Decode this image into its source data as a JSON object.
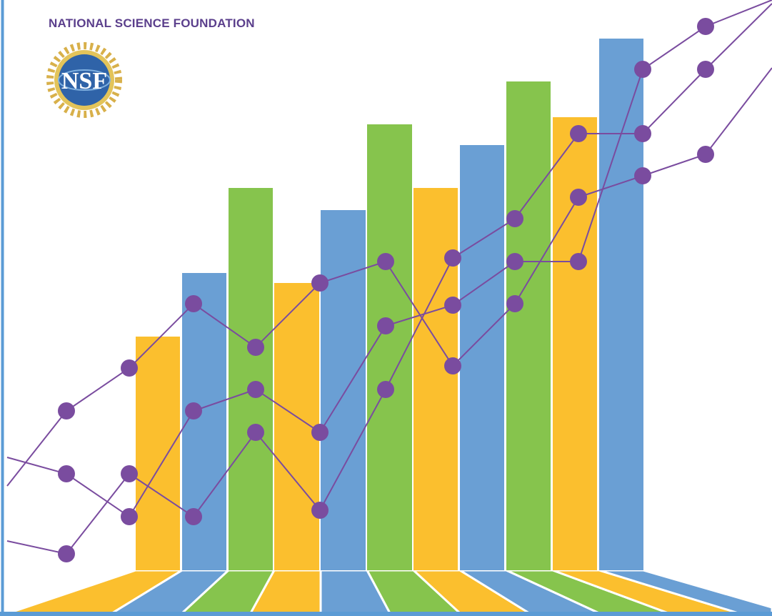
{
  "header": {
    "title": "NATIONAL SCIENCE FOUNDATION"
  },
  "logo": {
    "text": "NSF"
  }
}
